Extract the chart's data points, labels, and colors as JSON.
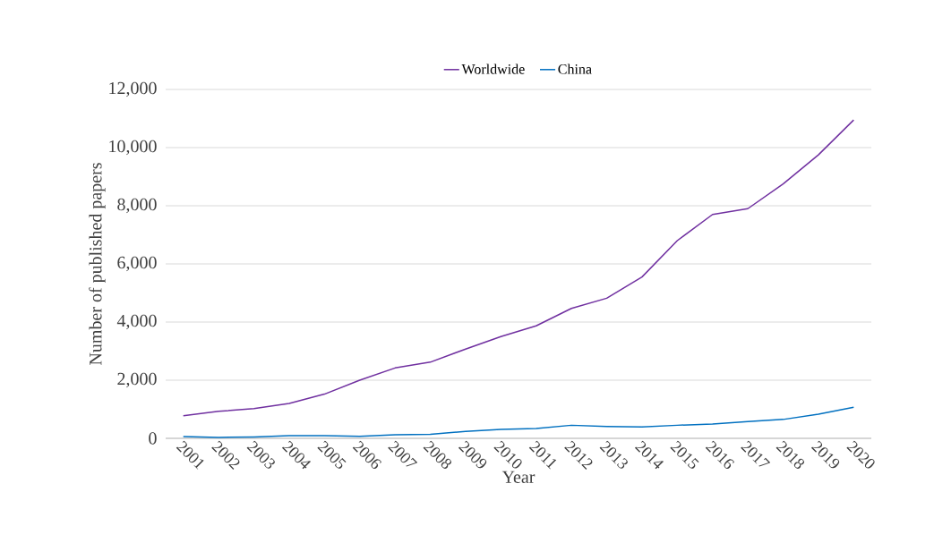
{
  "chart_data": {
    "type": "line",
    "xlabel": "Year",
    "ylabel": "Number of published papers",
    "categories": [
      "2001",
      "2002",
      "2003",
      "2004",
      "2005",
      "2006",
      "2007",
      "2008",
      "2009",
      "2010",
      "2011",
      "2012",
      "2013",
      "2014",
      "2015",
      "2016",
      "2017",
      "2018",
      "2019",
      "2020"
    ],
    "series": [
      {
        "name": "Worldwide",
        "color": "#7030a0",
        "values": [
          775,
          930,
          1020,
          1200,
          1520,
          2000,
          2420,
          2620,
          3070,
          3500,
          3870,
          4470,
          4820,
          5550,
          6800,
          7700,
          7900,
          8750,
          9750,
          10950
        ]
      },
      {
        "name": "China",
        "color": "#0070c0",
        "values": [
          60,
          30,
          50,
          90,
          90,
          70,
          120,
          140,
          240,
          310,
          340,
          450,
          410,
          390,
          450,
          490,
          580,
          650,
          830,
          1070
        ]
      }
    ],
    "ylim": [
      0,
      12000
    ],
    "yticks": [
      {
        "value": 0,
        "label": "0"
      },
      {
        "value": 2000,
        "label": "2,000"
      },
      {
        "value": 4000,
        "label": "4,000"
      },
      {
        "value": 6000,
        "label": "6,000"
      },
      {
        "value": 8000,
        "label": "8,000"
      },
      {
        "value": 10000,
        "label": "10,000"
      },
      {
        "value": 12000,
        "label": "12,000"
      }
    ],
    "grid": "y",
    "legend": "top",
    "marker": "none",
    "line_style": "solid"
  }
}
